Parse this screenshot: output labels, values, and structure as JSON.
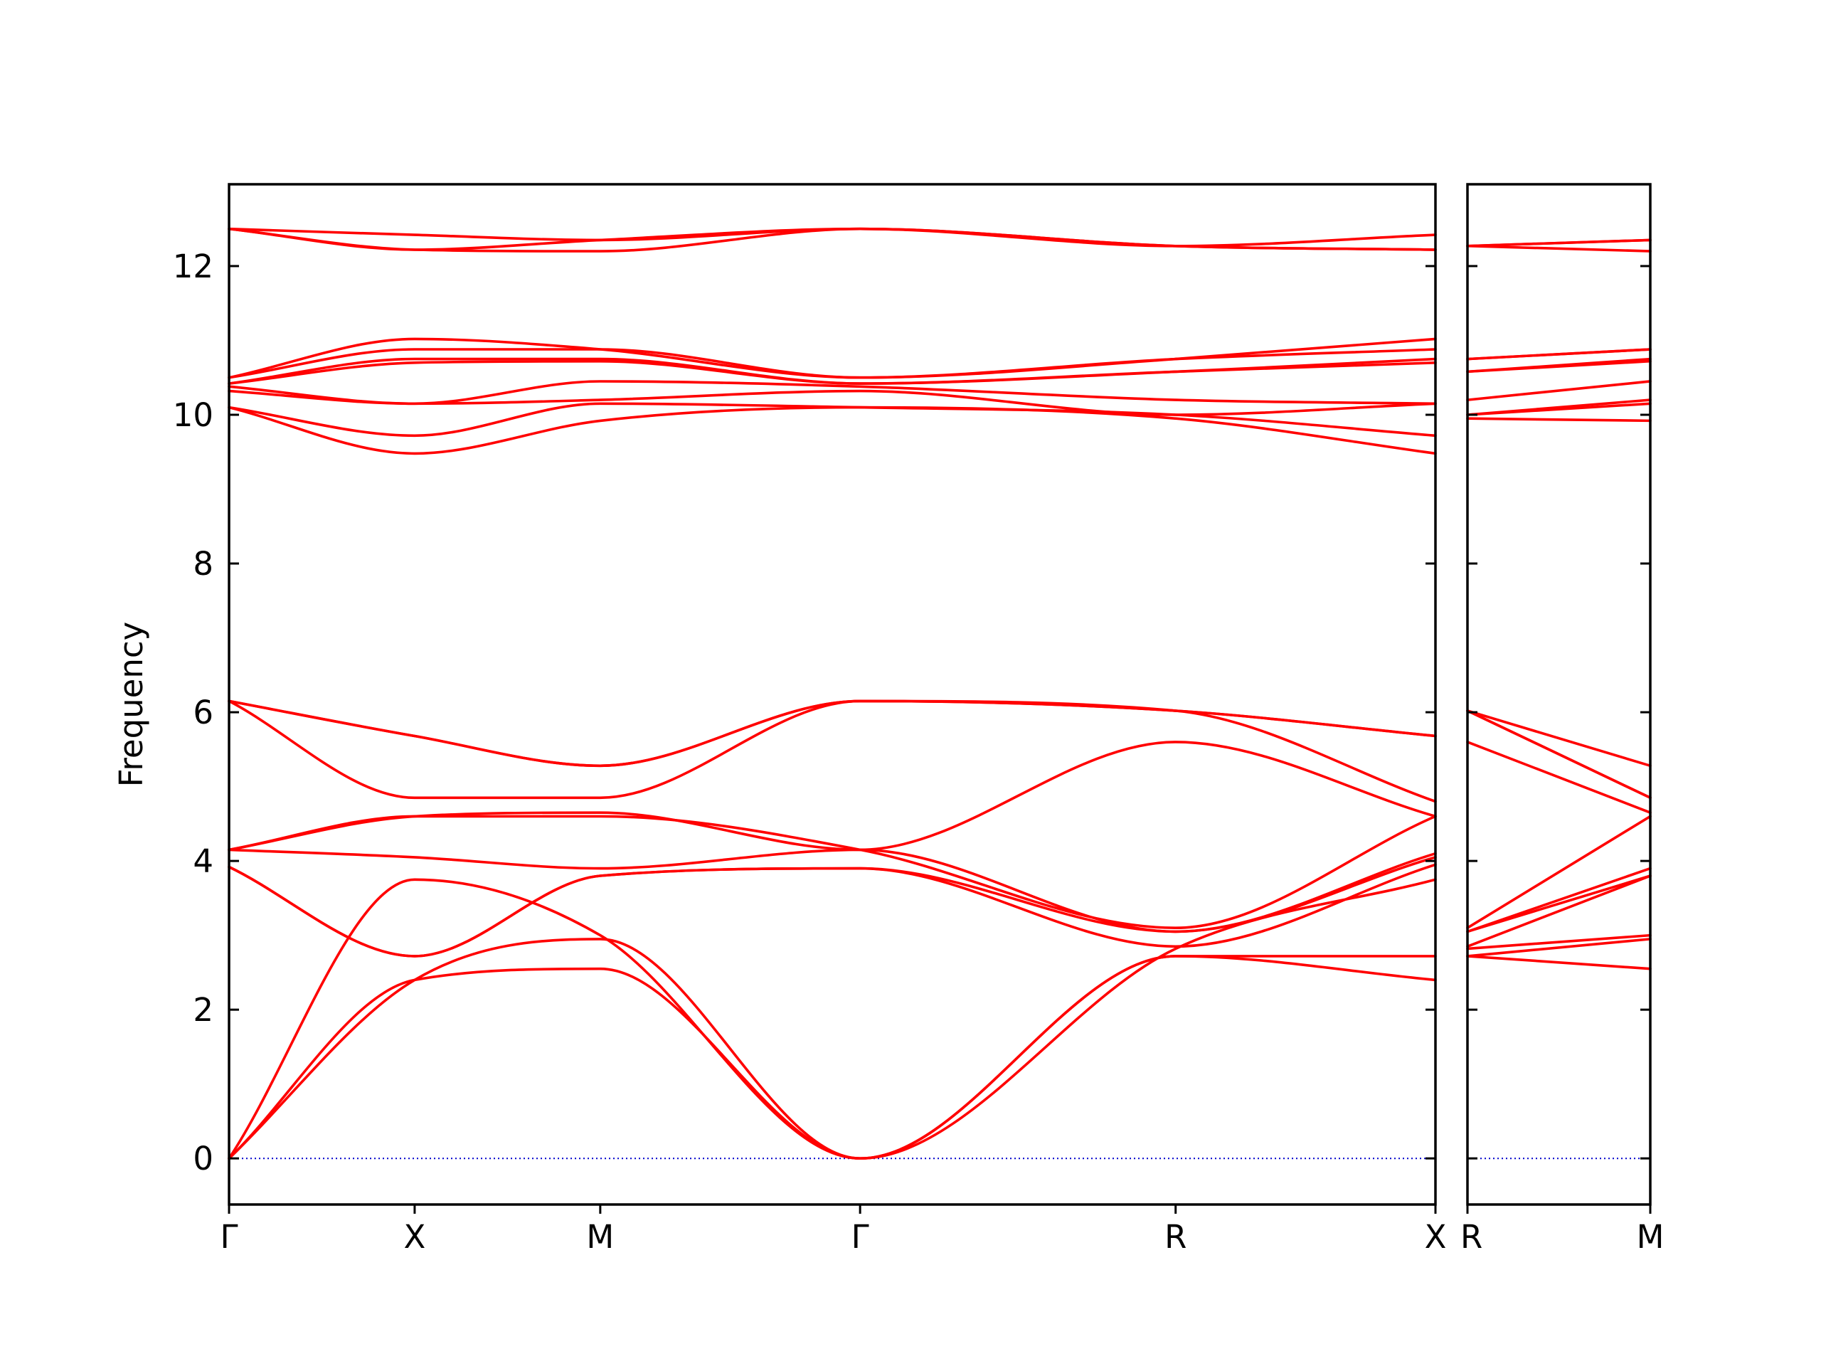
{
  "chart_data": {
    "type": "line",
    "title": "",
    "ylabel": "Frequency",
    "xlabel": "",
    "ylim": [
      -0.62,
      13.1
    ],
    "y_ticks": [
      0,
      2,
      4,
      6,
      8,
      10,
      12
    ],
    "grid": false,
    "legend": "none",
    "band_color": "#ff0000",
    "zero_line_color": "#0000cc",
    "panels": [
      {
        "path_x_range": [
          0,
          3.9
        ],
        "symmetry_points": [
          {
            "label": "Γ",
            "x": 0
          },
          {
            "label": "X",
            "x": 0.6
          },
          {
            "label": "M",
            "x": 1.2
          },
          {
            "label": "Γ",
            "x": 2.04
          },
          {
            "label": "R",
            "x": 3.06
          },
          {
            "label": "X",
            "x": 3.9
          }
        ],
        "bands": [
          {
            "x": [
              0,
              0.6,
              1.2,
              2.04,
              3.06,
              3.9
            ],
            "y": [
              0,
              2.4,
              2.55,
              0,
              2.72,
              2.4
            ]
          },
          {
            "x": [
              0,
              0.6,
              1.2,
              2.04,
              3.06,
              3.9
            ],
            "y": [
              0,
              2.4,
              2.95,
              0,
              2.72,
              2.72
            ]
          },
          {
            "x": [
              0,
              0.6,
              1.2,
              2.04,
              3.06,
              3.9
            ],
            "y": [
              0,
              3.75,
              3.0,
              0,
              2.82,
              3.75
            ]
          },
          {
            "x": [
              0,
              0.6,
              1.2,
              2.04,
              3.06,
              3.9
            ],
            "y": [
              3.92,
              2.72,
              3.8,
              3.9,
              2.85,
              3.95
            ]
          },
          {
            "x": [
              0,
              0.6,
              1.2,
              2.04,
              3.06,
              3.9
            ],
            "y": [
              3.92,
              2.72,
              3.8,
              3.9,
              3.05,
              4.05
            ]
          },
          {
            "x": [
              0,
              0.6,
              1.2,
              2.04,
              3.06,
              3.9
            ],
            "y": [
              4.15,
              4.05,
              3.9,
              4.15,
              3.05,
              4.1
            ]
          },
          {
            "x": [
              0,
              0.6,
              1.2,
              2.04,
              3.06,
              3.9
            ],
            "y": [
              4.15,
              4.6,
              4.6,
              4.15,
              3.1,
              4.6
            ]
          },
          {
            "x": [
              0,
              0.6,
              1.2,
              2.04,
              3.06,
              3.9
            ],
            "y": [
              4.15,
              4.6,
              4.65,
              4.15,
              5.6,
              4.6
            ]
          },
          {
            "x": [
              0,
              0.6,
              1.2,
              2.04,
              3.06,
              3.9
            ],
            "y": [
              6.15,
              4.85,
              4.85,
              6.15,
              6.02,
              4.8
            ]
          },
          {
            "x": [
              0,
              0.6,
              1.2,
              2.04,
              3.06,
              3.9
            ],
            "y": [
              6.15,
              5.68,
              5.28,
              6.15,
              6.02,
              5.68
            ]
          },
          {
            "x": [
              0,
              0.6,
              1.2,
              2.04,
              3.06,
              3.9
            ],
            "y": [
              6.15,
              5.68,
              5.28,
              6.15,
              6.02,
              5.68
            ]
          },
          {
            "x": [
              0,
              0.6,
              1.2,
              2.04,
              3.06,
              3.9
            ],
            "y": [
              10.1,
              9.48,
              9.92,
              10.1,
              9.95,
              9.48
            ]
          },
          {
            "x": [
              0,
              0.6,
              1.2,
              2.04,
              3.06,
              3.9
            ],
            "y": [
              10.1,
              9.72,
              10.15,
              10.1,
              10.0,
              9.72
            ]
          },
          {
            "x": [
              0,
              0.6,
              1.2,
              2.04,
              3.06,
              3.9
            ],
            "y": [
              10.32,
              10.15,
              10.2,
              10.32,
              10.0,
              10.15
            ]
          },
          {
            "x": [
              0,
              0.6,
              1.2,
              2.04,
              3.06,
              3.9
            ],
            "y": [
              10.38,
              10.15,
              10.45,
              10.38,
              10.2,
              10.15
            ]
          },
          {
            "x": [
              0,
              0.6,
              1.2,
              2.04,
              3.06,
              3.9
            ],
            "y": [
              10.42,
              10.7,
              10.72,
              10.42,
              10.58,
              10.7
            ]
          },
          {
            "x": [
              0,
              0.6,
              1.2,
              2.04,
              3.06,
              3.9
            ],
            "y": [
              10.42,
              10.75,
              10.75,
              10.42,
              10.58,
              10.75
            ]
          },
          {
            "x": [
              0,
              0.6,
              1.2,
              2.04,
              3.06,
              3.9
            ],
            "y": [
              10.5,
              10.88,
              10.88,
              10.5,
              10.75,
              10.88
            ]
          },
          {
            "x": [
              0,
              0.6,
              1.2,
              2.04,
              3.06,
              3.9
            ],
            "y": [
              10.5,
              11.02,
              10.88,
              10.5,
              10.75,
              11.02
            ]
          },
          {
            "x": [
              0,
              0.6,
              1.2,
              2.04,
              3.06,
              3.9
            ],
            "y": [
              12.5,
              12.22,
              12.2,
              12.5,
              12.27,
              12.22
            ]
          },
          {
            "x": [
              0,
              0.6,
              1.2,
              2.04,
              3.06,
              3.9
            ],
            "y": [
              12.5,
              12.22,
              12.35,
              12.5,
              12.27,
              12.22
            ]
          },
          {
            "x": [
              0,
              0.6,
              1.2,
              2.04,
              3.06,
              3.9
            ],
            "y": [
              12.5,
              12.42,
              12.35,
              12.5,
              12.27,
              12.42
            ]
          }
        ]
      },
      {
        "path_x_range": [
          0,
          0.6
        ],
        "symmetry_points": [
          {
            "label": "R",
            "x": 0
          },
          {
            "label": "M",
            "x": 0.6
          }
        ],
        "bands": [
          {
            "x": [
              0,
              0.6
            ],
            "y": [
              2.72,
              2.55
            ]
          },
          {
            "x": [
              0,
              0.6
            ],
            "y": [
              2.72,
              2.95
            ]
          },
          {
            "x": [
              0,
              0.6
            ],
            "y": [
              2.82,
              3.0
            ]
          },
          {
            "x": [
              0,
              0.6
            ],
            "y": [
              2.85,
              3.8
            ]
          },
          {
            "x": [
              0,
              0.6
            ],
            "y": [
              3.05,
              3.8
            ]
          },
          {
            "x": [
              0,
              0.6
            ],
            "y": [
              3.05,
              3.9
            ]
          },
          {
            "x": [
              0,
              0.6
            ],
            "y": [
              3.1,
              4.6
            ]
          },
          {
            "x": [
              0,
              0.6
            ],
            "y": [
              5.6,
              4.65
            ]
          },
          {
            "x": [
              0,
              0.6
            ],
            "y": [
              6.02,
              4.85
            ]
          },
          {
            "x": [
              0,
              0.6
            ],
            "y": [
              6.02,
              4.85
            ]
          },
          {
            "x": [
              0,
              0.6
            ],
            "y": [
              6.02,
              5.28
            ]
          },
          {
            "x": [
              0,
              0.6
            ],
            "y": [
              9.95,
              9.92
            ]
          },
          {
            "x": [
              0,
              0.6
            ],
            "y": [
              10.0,
              10.15
            ]
          },
          {
            "x": [
              0,
              0.6
            ],
            "y": [
              10.0,
              10.2
            ]
          },
          {
            "x": [
              0,
              0.6
            ],
            "y": [
              10.2,
              10.45
            ]
          },
          {
            "x": [
              0,
              0.6
            ],
            "y": [
              10.58,
              10.72
            ]
          },
          {
            "x": [
              0,
              0.6
            ],
            "y": [
              10.58,
              10.75
            ]
          },
          {
            "x": [
              0,
              0.6
            ],
            "y": [
              10.75,
              10.88
            ]
          },
          {
            "x": [
              0,
              0.6
            ],
            "y": [
              10.75,
              10.88
            ]
          },
          {
            "x": [
              0,
              0.6
            ],
            "y": [
              12.27,
              12.2
            ]
          },
          {
            "x": [
              0,
              0.6
            ],
            "y": [
              12.27,
              12.35
            ]
          },
          {
            "x": [
              0,
              0.6
            ],
            "y": [
              12.27,
              12.35
            ]
          }
        ]
      }
    ]
  }
}
